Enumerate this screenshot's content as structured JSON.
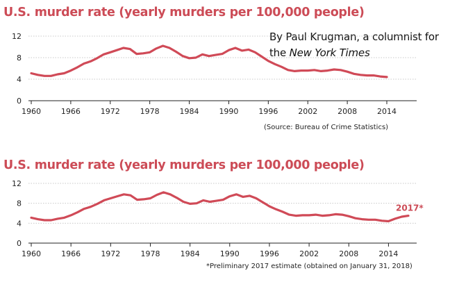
{
  "charts_meta": {
    "line_color": "#d04a57",
    "grid_color": "#c8c8c8"
  },
  "byline": {
    "line1": "By Paul Krugman, a columnist for",
    "line2_prefix": "the ",
    "line2_italic": "New York Times"
  },
  "chart_data": [
    {
      "type": "line",
      "title": "U.S. murder rate (yearly murders per 100,000 people)",
      "source": "(Source: Bureau of Crime Statistics)",
      "xlim": [
        1960,
        2014
      ],
      "ylim": [
        0,
        12
      ],
      "xticks": [
        1960,
        1966,
        1972,
        1978,
        1984,
        1990,
        1996,
        2002,
        2008,
        2014
      ],
      "yticks": [
        0,
        4,
        8,
        12
      ],
      "grid": true,
      "x": [
        1960,
        1961,
        1962,
        1963,
        1964,
        1965,
        1966,
        1967,
        1968,
        1969,
        1970,
        1971,
        1972,
        1973,
        1974,
        1975,
        1976,
        1977,
        1978,
        1979,
        1980,
        1981,
        1982,
        1983,
        1984,
        1985,
        1986,
        1987,
        1988,
        1989,
        1990,
        1991,
        1992,
        1993,
        1994,
        1995,
        1996,
        1997,
        1998,
        1999,
        2000,
        2001,
        2002,
        2003,
        2004,
        2005,
        2006,
        2007,
        2008,
        2009,
        2010,
        2011,
        2012,
        2013,
        2014
      ],
      "y": [
        5.1,
        4.8,
        4.6,
        4.6,
        4.9,
        5.1,
        5.6,
        6.2,
        6.9,
        7.3,
        7.9,
        8.6,
        9.0,
        9.4,
        9.8,
        9.6,
        8.7,
        8.8,
        9.0,
        9.7,
        10.2,
        9.8,
        9.1,
        8.3,
        7.9,
        8.0,
        8.6,
        8.3,
        8.5,
        8.7,
        9.4,
        9.8,
        9.3,
        9.5,
        9.0,
        8.2,
        7.4,
        6.8,
        6.3,
        5.7,
        5.5,
        5.6,
        5.6,
        5.7,
        5.5,
        5.6,
        5.8,
        5.7,
        5.4,
        5.0,
        4.8,
        4.7,
        4.7,
        4.5,
        4.4
      ]
    },
    {
      "type": "line",
      "title": "U.S. murder rate (yearly murders per 100,000 people)",
      "footnote": "*Preliminary 2017 estimate (obtained on January 31, 2018)",
      "xlim": [
        1960,
        2017
      ],
      "ylim": [
        0,
        12
      ],
      "xticks": [
        1960,
        1966,
        1972,
        1978,
        1984,
        1990,
        1996,
        2002,
        2008,
        2014
      ],
      "yticks": [
        0,
        4,
        8,
        12
      ],
      "grid": true,
      "annotation": "2017*",
      "x": [
        1960,
        1961,
        1962,
        1963,
        1964,
        1965,
        1966,
        1967,
        1968,
        1969,
        1970,
        1971,
        1972,
        1973,
        1974,
        1975,
        1976,
        1977,
        1978,
        1979,
        1980,
        1981,
        1982,
        1983,
        1984,
        1985,
        1986,
        1987,
        1988,
        1989,
        1990,
        1991,
        1992,
        1993,
        1994,
        1995,
        1996,
        1997,
        1998,
        1999,
        2000,
        2001,
        2002,
        2003,
        2004,
        2005,
        2006,
        2007,
        2008,
        2009,
        2010,
        2011,
        2012,
        2013,
        2014,
        2015,
        2016,
        2017
      ],
      "y": [
        5.1,
        4.8,
        4.6,
        4.6,
        4.9,
        5.1,
        5.6,
        6.2,
        6.9,
        7.3,
        7.9,
        8.6,
        9.0,
        9.4,
        9.8,
        9.6,
        8.7,
        8.8,
        9.0,
        9.7,
        10.2,
        9.8,
        9.1,
        8.3,
        7.9,
        8.0,
        8.6,
        8.3,
        8.5,
        8.7,
        9.4,
        9.8,
        9.3,
        9.5,
        9.0,
        8.2,
        7.4,
        6.8,
        6.3,
        5.7,
        5.5,
        5.6,
        5.6,
        5.7,
        5.5,
        5.6,
        5.8,
        5.7,
        5.4,
        5.0,
        4.8,
        4.7,
        4.7,
        4.5,
        4.4,
        4.9,
        5.3,
        5.5
      ]
    }
  ]
}
